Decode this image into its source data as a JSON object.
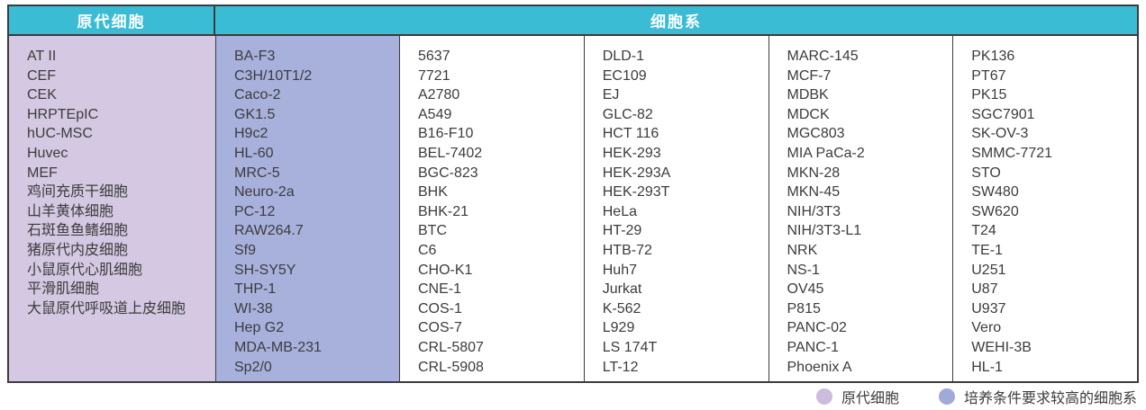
{
  "table": {
    "header": {
      "primary_cells": "原代细胞",
      "cell_lines": "细胞系"
    },
    "columns": {
      "primary": [
        "AT II",
        "CEF",
        "CEK",
        "HRPTEpIC",
        "hUC-MSC",
        "Huvec",
        "MEF",
        "鸡间充质干细胞",
        "山羊黄体细胞",
        "石斑鱼鱼鳍细胞",
        "猪原代内皮细胞",
        "小鼠原代心肌细胞",
        "平滑肌细胞",
        "大鼠原代呼吸道上皮细胞"
      ],
      "demanding": [
        "BA-F3",
        "C3H/10T1/2",
        "Caco-2",
        "GK1.5",
        "H9c2",
        "HL-60",
        "MRC-5",
        "Neuro-2a",
        "PC-12",
        "RAW264.7",
        "Sf9",
        "SH-SY5Y",
        "THP-1",
        "WI-38",
        "Hep G2",
        "MDA-MB-231",
        "Sp2/0"
      ],
      "lines_a": [
        "5637",
        "7721",
        "A2780",
        "A549",
        "B16-F10",
        "BEL-7402",
        "BGC-823",
        "BHK",
        "BHK-21",
        "BTC",
        "C6",
        "CHO-K1",
        "CNE-1",
        "COS-1",
        "COS-7",
        "CRL-5807",
        "CRL-5908"
      ],
      "lines_b": [
        "DLD-1",
        "EC109",
        "EJ",
        "GLC-82",
        "HCT 116",
        "HEK-293",
        "HEK-293A",
        "HEK-293T",
        "HeLa",
        "HT-29",
        "HTB-72",
        "Huh7",
        "Jurkat",
        "K-562",
        "L929",
        "LS 174T",
        "LT-12"
      ],
      "lines_c": [
        "MARC-145",
        "MCF-7",
        "MDBK",
        "MDCK",
        "MGC803",
        "MIA PaCa-2",
        "MKN-28",
        "MKN-45",
        "NIH/3T3",
        "NIH/3T3-L1",
        "NRK",
        "NS-1",
        "OV45",
        "P815",
        "PANC-02",
        "PANC-1",
        "Phoenix A"
      ],
      "lines_d": [
        "PK136",
        "PT67",
        "PK15",
        "SGC7901",
        "SK-OV-3",
        "SMMC-7721",
        "STO",
        "SW480",
        "SW620",
        "T24",
        "TE-1",
        "U251",
        "U87",
        "U937",
        "Vero",
        "WEHI-3B",
        "HL-1"
      ]
    }
  },
  "legend": {
    "primary_label": "原代细胞",
    "demanding_label": "培养条件要求较高的细胞系"
  },
  "colors": {
    "header_bg": "#3abcd5",
    "primary_column_bg": "#d4c8e2",
    "demanding_column_bg": "#a7b1dc",
    "legend_primary_dot": "#cdbcde",
    "legend_demanding_dot": "#a0aad8",
    "border": "#3c3c3c"
  }
}
